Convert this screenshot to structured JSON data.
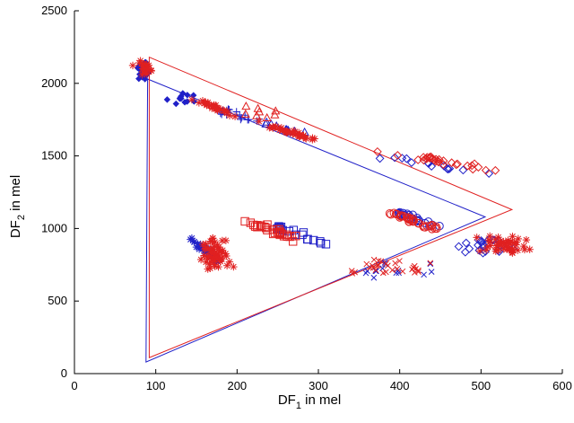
{
  "chart_data": {
    "type": "scatter",
    "xlabel": {
      "main": "DF",
      "sub": "1",
      "suffix": " in mel"
    },
    "ylabel": {
      "main": "DF",
      "sub": "2",
      "suffix": " in mel"
    },
    "xlim": [
      0,
      600
    ],
    "ylim": [
      0,
      2500
    ],
    "xticks": [
      0,
      100,
      200,
      300,
      400,
      500,
      600
    ],
    "yticks": [
      0,
      500,
      1000,
      1500,
      2000,
      2500
    ],
    "grid": false,
    "legend": "none",
    "series": [
      {
        "color": "#2020c8",
        "triangle": [
          [
            90,
            2030
          ],
          [
            505,
            1080
          ],
          [
            88,
            80
          ]
        ],
        "clusters": [
          {
            "marker": "diamond-filled",
            "n": 26,
            "x": [
              68,
              100
            ],
            "y": [
              2010,
              2160
            ]
          },
          {
            "marker": "diamond-filled",
            "n": 12,
            "x": [
              108,
              160
            ],
            "y": [
              1830,
              1960
            ]
          },
          {
            "marker": "plus",
            "n": 18,
            "x": [
              130,
              260
            ],
            "y": [
              1660,
              1920
            ]
          },
          {
            "marker": "triangle",
            "n": 10,
            "x": [
              200,
              300
            ],
            "y": [
              1600,
              1800
            ]
          },
          {
            "marker": "diamond",
            "n": 14,
            "x": [
              340,
              540
            ],
            "y": [
              1350,
              1540
            ]
          },
          {
            "marker": "star",
            "n": 32,
            "x": [
              128,
              195
            ],
            "y": [
              700,
              1000
            ]
          },
          {
            "marker": "square",
            "n": 18,
            "x": [
              212,
              320
            ],
            "y": [
              860,
              1090
            ]
          },
          {
            "marker": "circle",
            "n": 22,
            "x": [
              370,
              460
            ],
            "y": [
              970,
              1190
            ]
          },
          {
            "marker": "diamond",
            "n": 22,
            "x": [
              460,
              550
            ],
            "y": [
              830,
              950
            ]
          },
          {
            "marker": "cross",
            "n": 14,
            "x": [
              320,
              460
            ],
            "y": [
              640,
              780
            ]
          }
        ]
      },
      {
        "color": "#e02020",
        "triangle": [
          [
            92,
            2180
          ],
          [
            538,
            1130
          ],
          [
            92,
            110
          ]
        ],
        "clusters": [
          {
            "marker": "star",
            "n": 22,
            "x": [
              66,
              105
            ],
            "y": [
              2050,
              2170
            ]
          },
          {
            "marker": "star",
            "n": 30,
            "x": [
              140,
              205
            ],
            "y": [
              1750,
              1920
            ]
          },
          {
            "marker": "triangle",
            "n": 8,
            "x": [
              190,
              260
            ],
            "y": [
              1750,
              1860
            ]
          },
          {
            "marker": "star",
            "n": 34,
            "x": [
              220,
              310
            ],
            "y": [
              1580,
              1750
            ]
          },
          {
            "marker": "diamond",
            "n": 30,
            "x": [
              360,
              550
            ],
            "y": [
              1350,
              1570
            ]
          },
          {
            "marker": "star",
            "n": 60,
            "x": [
              145,
              200
            ],
            "y": [
              690,
              950
            ]
          },
          {
            "marker": "square",
            "n": 32,
            "x": [
              195,
              300
            ],
            "y": [
              860,
              1100
            ]
          },
          {
            "marker": "circle",
            "n": 36,
            "x": [
              370,
              460
            ],
            "y": [
              960,
              1150
            ]
          },
          {
            "marker": "star",
            "n": 46,
            "x": [
              470,
              580
            ],
            "y": [
              820,
              950
            ]
          },
          {
            "marker": "cross",
            "n": 30,
            "x": [
              300,
              460
            ],
            "y": [
              660,
              790
            ]
          }
        ]
      }
    ]
  }
}
